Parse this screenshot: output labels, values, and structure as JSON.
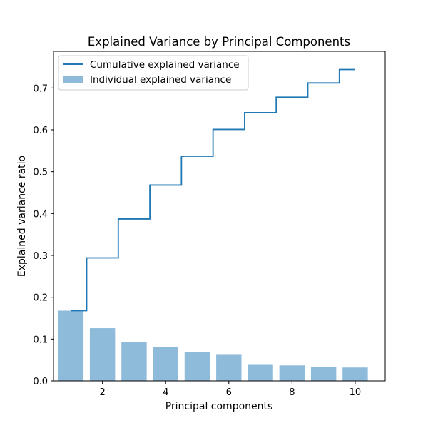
{
  "chart_data": {
    "type": "bar",
    "title": "Explained Variance by Principal Components",
    "xlabel": "Principal components",
    "ylabel": "Explained variance ratio",
    "xlim": [
      0.45,
      10.95
    ],
    "ylim": [
      0,
      0.7875
    ],
    "xticks": [
      2,
      4,
      6,
      8,
      10
    ],
    "yticks": [
      0.0,
      0.1,
      0.2,
      0.3,
      0.4,
      0.5,
      0.6,
      0.7
    ],
    "x": [
      1,
      2,
      3,
      4,
      5,
      6,
      7,
      8,
      9,
      10
    ],
    "series": [
      {
        "name": "Individual explained variance",
        "kind": "bar",
        "color": "#8fbbdb",
        "values": [
          0.168,
          0.126,
          0.093,
          0.081,
          0.069,
          0.064,
          0.04,
          0.037,
          0.034,
          0.032
        ]
      },
      {
        "name": "Cumulative explained variance",
        "kind": "step",
        "color": "#1f77b4",
        "values": [
          0.168,
          0.294,
          0.387,
          0.468,
          0.537,
          0.601,
          0.641,
          0.678,
          0.712,
          0.744
        ]
      }
    ],
    "legend_position": "upper-left",
    "grid": false
  }
}
